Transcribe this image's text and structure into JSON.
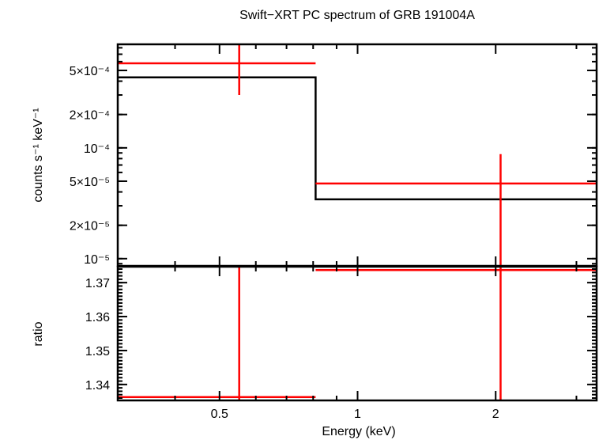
{
  "chart_data": {
    "type": "line",
    "title": "Swift−XRT PC spectrum of GRB 191004A",
    "xlabel": "Energy (keV)",
    "xscale": "log",
    "xlim": [
      0.3,
      3.32
    ],
    "xticks": [
      {
        "v": 0.5,
        "label": "0.5"
      },
      {
        "v": 1,
        "label": "1"
      },
      {
        "v": 2,
        "label": "2"
      }
    ],
    "panels": [
      {
        "name": "spectrum",
        "ylabel": "counts s⁻¹ keV⁻¹",
        "yscale": "log",
        "ylim": [
          8.6e-06,
          0.00086
        ],
        "yticks": [
          {
            "v": 0.0005,
            "label": "5×10⁻⁴"
          },
          {
            "v": 0.0002,
            "label": "2×10⁻⁴"
          },
          {
            "v": 0.0001,
            "label": "10⁻⁴"
          },
          {
            "v": 5e-05,
            "label": "5×10⁻⁵"
          },
          {
            "v": 2e-05,
            "label": "2×10⁻⁵"
          },
          {
            "v": 1e-05,
            "label": "10⁻⁵"
          }
        ],
        "data": [
          {
            "xlo": 0.3,
            "xhi": 0.81,
            "x": 0.552,
            "y": 0.00058,
            "ylo": 0.0003,
            "yhi": 0.001
          },
          {
            "xlo": 0.81,
            "xhi": 3.32,
            "x": 2.05,
            "y": 4.77e-05,
            "ylo": 1e-06,
            "yhi": 8.77e-05
          }
        ],
        "model": [
          {
            "xlo": 0.3,
            "xhi": 0.81,
            "y": 0.000433
          },
          {
            "xlo": 0.81,
            "xhi": 3.32,
            "y": 3.43e-05
          }
        ]
      },
      {
        "name": "ratio",
        "ylabel": "ratio",
        "yscale": "linear",
        "ylim": [
          1.3353,
          1.3747
        ],
        "yticks": [
          {
            "v": 1.37,
            "label": "1.37"
          },
          {
            "v": 1.36,
            "label": "1.36"
          },
          {
            "v": 1.35,
            "label": "1.35"
          },
          {
            "v": 1.34,
            "label": "1.34"
          }
        ],
        "data": [
          {
            "xlo": 0.3,
            "xhi": 0.81,
            "x": 0.552,
            "y": 1.3363,
            "ylo": 1.3,
            "yhi": 1.4
          },
          {
            "xlo": 0.81,
            "xhi": 3.32,
            "x": 2.05,
            "y": 1.3737,
            "ylo": 1.3,
            "yhi": 1.4
          }
        ]
      }
    ],
    "colors": {
      "data": "#ff0000",
      "model": "#000000"
    }
  }
}
